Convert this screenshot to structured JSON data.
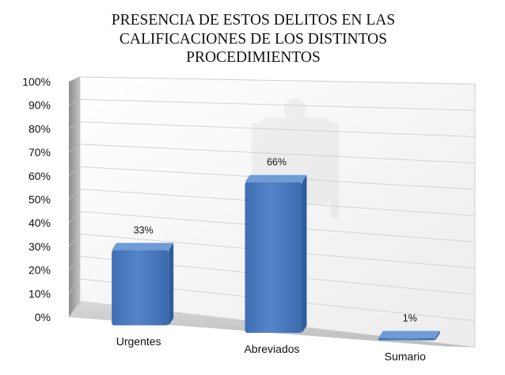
{
  "chart_data": {
    "type": "bar",
    "title_lines": [
      "PRESENCIA DE ESTOS DELITOS EN LAS",
      "CALIFICACIONES DE LOS DISTINTOS",
      "PROCEDIMIENTOS"
    ],
    "categories": [
      "Urgentes",
      "Abreviados",
      "Sumario"
    ],
    "values": [
      33,
      66,
      1
    ],
    "data_labels": [
      "33%",
      "66%",
      "1%"
    ],
    "y_ticks": [
      "0%",
      "10%",
      "20%",
      "30%",
      "40%",
      "50%",
      "60%",
      "70%",
      "80%",
      "90%",
      "100%"
    ],
    "ylim": [
      0,
      100
    ],
    "xlabel": "",
    "ylabel": "",
    "grid": true,
    "legend": "none",
    "style": "3d-perspective",
    "colors": {
      "bar_front": "#4a7cc0",
      "bar_top": "#6f9bd6",
      "bar_side": "#2f5d9c",
      "grid": "#d3d3d3",
      "back_wall": "#f4f4f4",
      "side_wall": "#a6a6a6",
      "floor": "#c8c8c8"
    }
  }
}
